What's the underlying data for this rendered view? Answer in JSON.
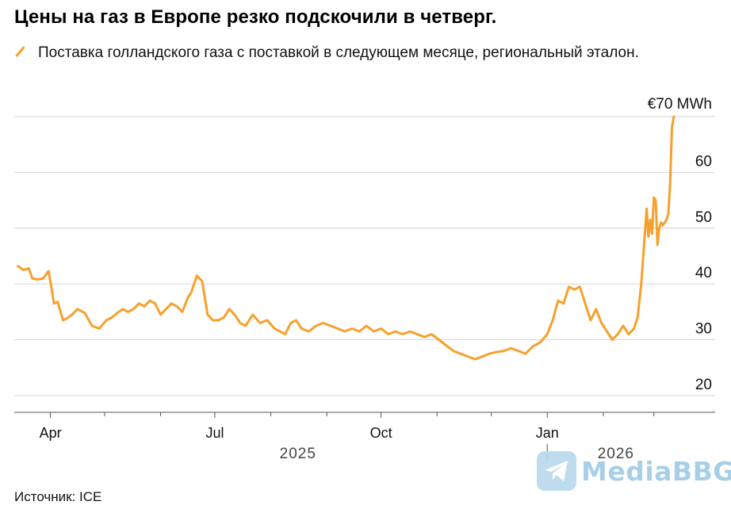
{
  "title": "Цены на газ в Европе резко подскочили в четверг.",
  "legend_label": "Поставка голландского газа с поставкой в следующем месяце, региональный эталон.",
  "source": "Источник: ICE",
  "watermark": "MediaBBG",
  "colors": {
    "series": "#f7a02c",
    "grid": "#d6d6d6",
    "axis": "#555555",
    "watermark": "#a8cfe8"
  },
  "chart_data": {
    "type": "line",
    "title": "Цены на газ в Европе резко подскочили в четверг.",
    "ylabel": "",
    "y_unit_label": "€70 MWh",
    "ylim": [
      17,
      70
    ],
    "y_ticks": [
      20,
      30,
      40,
      50,
      60,
      70
    ],
    "y_tick_labels": [
      "20",
      "30",
      "40",
      "50",
      "60",
      "€70 MWh"
    ],
    "xlim": [
      "2025-03-12",
      "2026-03-20"
    ],
    "x_ticks": [
      {
        "date": "2025-04-01",
        "label": "Apr"
      },
      {
        "date": "2025-07-01",
        "label": "Jul"
      },
      {
        "date": "2025-10-01",
        "label": "Oct"
      },
      {
        "date": "2026-01-01",
        "label": "Jan"
      }
    ],
    "x_minor_ticks": [
      "2025-05-01",
      "2025-06-01",
      "2025-08-01",
      "2025-09-01",
      "2025-11-01",
      "2025-12-01",
      "2026-02-01",
      "2026-03-01"
    ],
    "year_labels": [
      {
        "date": "2025-08-16",
        "label": "2025"
      },
      {
        "date": "2026-02-08",
        "label": "2026"
      }
    ],
    "year_divider": "2026-01-01",
    "grid": true,
    "legend": "top-left",
    "series": [
      {
        "name": "Поставка голландского газа с поставкой в следующем месяце, региональный эталон.",
        "x": [
          "2025-03-14",
          "2025-03-17",
          "2025-03-20",
          "2025-03-22",
          "2025-03-25",
          "2025-03-28",
          "2025-03-31",
          "2025-04-02",
          "2025-04-03",
          "2025-04-05",
          "2025-04-08",
          "2025-04-10",
          "2025-04-13",
          "2025-04-16",
          "2025-04-20",
          "2025-04-24",
          "2025-04-28",
          "2025-05-02",
          "2025-05-05",
          "2025-05-08",
          "2025-05-11",
          "2025-05-14",
          "2025-05-17",
          "2025-05-20",
          "2025-05-23",
          "2025-05-26",
          "2025-05-29",
          "2025-06-01",
          "2025-06-04",
          "2025-06-07",
          "2025-06-10",
          "2025-06-13",
          "2025-06-16",
          "2025-06-18",
          "2025-06-21",
          "2025-06-24",
          "2025-06-27",
          "2025-06-30",
          "2025-07-03",
          "2025-07-06",
          "2025-07-09",
          "2025-07-12",
          "2025-07-15",
          "2025-07-18",
          "2025-07-22",
          "2025-07-26",
          "2025-07-30",
          "2025-08-03",
          "2025-08-06",
          "2025-08-09",
          "2025-08-12",
          "2025-08-15",
          "2025-08-18",
          "2025-08-22",
          "2025-08-26",
          "2025-08-30",
          "2025-09-03",
          "2025-09-07",
          "2025-09-11",
          "2025-09-15",
          "2025-09-19",
          "2025-09-23",
          "2025-09-27",
          "2025-10-01",
          "2025-10-05",
          "2025-10-09",
          "2025-10-13",
          "2025-10-17",
          "2025-10-21",
          "2025-10-25",
          "2025-10-29",
          "2025-11-02",
          "2025-11-06",
          "2025-11-10",
          "2025-11-14",
          "2025-11-18",
          "2025-11-22",
          "2025-11-26",
          "2025-11-30",
          "2025-12-04",
          "2025-12-08",
          "2025-12-12",
          "2025-12-16",
          "2025-12-20",
          "2025-12-24",
          "2025-12-28",
          "2026-01-01",
          "2026-01-04",
          "2026-01-07",
          "2026-01-10",
          "2026-01-13",
          "2026-01-16",
          "2026-01-19",
          "2026-01-22",
          "2026-01-25",
          "2026-01-28",
          "2026-01-31",
          "2026-02-03",
          "2026-02-06",
          "2026-02-09",
          "2026-02-12",
          "2026-02-15",
          "2026-02-18",
          "2026-02-20",
          "2026-02-22",
          "2026-02-24",
          "2026-02-25",
          "2026-02-26",
          "2026-02-27",
          "2026-02-28",
          "2026-03-01",
          "2026-03-02",
          "2026-03-03",
          "2026-03-04",
          "2026-03-05",
          "2026-03-06",
          "2026-03-07",
          "2026-03-08",
          "2026-03-09",
          "2026-03-10",
          "2026-03-11",
          "2026-03-12"
        ],
        "y": [
          43.2,
          42.5,
          42.8,
          41.0,
          40.8,
          41.0,
          42.3,
          38.5,
          36.5,
          36.8,
          33.5,
          33.8,
          34.5,
          35.5,
          34.8,
          32.5,
          32.0,
          33.5,
          34.0,
          34.8,
          35.5,
          35.0,
          35.5,
          36.5,
          36.0,
          37.0,
          36.5,
          34.5,
          35.5,
          36.5,
          36.0,
          35.0,
          37.5,
          38.5,
          41.5,
          40.5,
          34.5,
          33.5,
          33.5,
          34.0,
          35.5,
          34.5,
          33.0,
          32.5,
          34.5,
          33.0,
          33.5,
          32.0,
          31.5,
          31.0,
          33.0,
          33.5,
          32.0,
          31.5,
          32.5,
          33.0,
          32.5,
          32.0,
          31.5,
          32.0,
          31.5,
          32.5,
          31.5,
          32.0,
          31.0,
          31.5,
          31.0,
          31.5,
          31.0,
          30.5,
          31.0,
          30.0,
          29.0,
          28.0,
          27.5,
          27.0,
          26.5,
          27.0,
          27.5,
          27.8,
          28.0,
          28.5,
          28.0,
          27.5,
          28.8,
          29.5,
          31.0,
          33.5,
          37.0,
          36.5,
          39.5,
          39.0,
          39.5,
          36.5,
          33.5,
          35.5,
          33.0,
          31.5,
          30.0,
          31.0,
          32.5,
          31.0,
          32.0,
          34.0,
          40.0,
          49.0,
          53.5,
          48.5,
          51.5,
          49.0,
          55.5,
          55.0,
          47.0,
          50.0,
          51.0,
          50.5,
          51.0,
          51.5,
          52.5,
          58.0,
          68.0,
          70.0
        ]
      }
    ]
  }
}
